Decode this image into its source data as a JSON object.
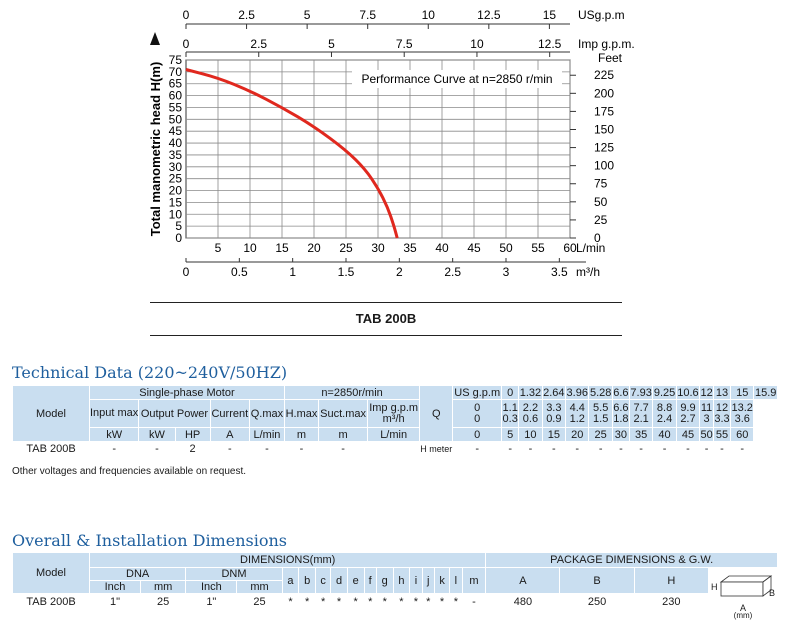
{
  "chart_data": {
    "type": "line",
    "title": "Performance Curve at n=2850 r/min",
    "ylabel": "Total manometric head H(m)",
    "y_ticks": [
      0,
      5,
      10,
      15,
      20,
      25,
      30,
      35,
      40,
      45,
      50,
      55,
      60,
      65,
      70,
      75
    ],
    "y_right_unit": "Feet",
    "y_right_ticks": [
      0,
      25,
      50,
      75,
      100,
      125,
      150,
      175,
      200,
      225
    ],
    "x_lmin_unit": "L/min",
    "x_lmin_ticks": [
      5,
      10,
      15,
      20,
      25,
      30,
      35,
      40,
      45,
      50,
      55,
      60
    ],
    "x_m3h_unit": "m³/h",
    "x_m3h_ticks": [
      "0",
      "0.5",
      "1",
      "1.5",
      "2",
      "2.5",
      "3",
      "3.5"
    ],
    "x_usgpm_unit": "USg.p.m",
    "x_usgpm_ticks": [
      "0",
      "2.5",
      "5",
      "7.5",
      "10",
      "12.5",
      "15"
    ],
    "x_impgpm_unit": "Imp g.p.m.",
    "x_impgpm_ticks": [
      "0",
      "2.5",
      "5",
      "7.5",
      "10",
      "12.5"
    ],
    "xlim": [
      0,
      60
    ],
    "ylim": [
      0,
      75
    ],
    "grid": true,
    "series": [
      {
        "color": "#e0281e",
        "x": [
          0,
          5,
          10,
          15,
          20,
          25,
          28,
          30,
          31.5,
          32.5,
          33
        ],
        "y": [
          71,
          67.5,
          62,
          55,
          47,
          37,
          29,
          21,
          13,
          5,
          0
        ]
      }
    ]
  },
  "model_caption": "TAB 200B",
  "technical": {
    "title": "Technical Data (220~240V/50HZ)",
    "model_header": "Model",
    "motor_header": "Single-phase Motor",
    "n_header": "n=2850r/min",
    "input_max": "Input max",
    "output_power": "Output Power",
    "current": "Current",
    "qmax": "Q.max",
    "hmax": "H.max",
    "suctmax": "Suct.max",
    "q": "Q",
    "unit_kw": "kW",
    "unit_kw2": "kW",
    "unit_hp": "HP",
    "unit_a": "A",
    "unit_lmin": "L/min",
    "unit_m": "m",
    "unit_m2": "m",
    "q_rows": [
      {
        "label": "US g.p.m",
        "values": [
          "0",
          "1.32",
          "2.64",
          "3.96",
          "5.28",
          "6.6",
          "7.93",
          "9.25",
          "10.6",
          "12",
          "13",
          "15",
          "15.9"
        ]
      },
      {
        "label": "Imp g.p.m",
        "values": [
          "0",
          "1.1",
          "2.2",
          "3.3",
          "4.4",
          "5.5",
          "6.6",
          "7.7",
          "8.8",
          "9.9",
          "11",
          "12",
          "13.2"
        ]
      },
      {
        "label": "m³/h",
        "values": [
          "0",
          "0.3",
          "0.6",
          "0.9",
          "1.2",
          "1.5",
          "1.8",
          "2.1",
          "2.4",
          "2.7",
          "3",
          "3.3",
          "3.6"
        ]
      },
      {
        "label": "L/min",
        "values": [
          "0",
          "5",
          "10",
          "15",
          "20",
          "25",
          "30",
          "35",
          "40",
          "45",
          "50",
          "55",
          "60"
        ]
      }
    ],
    "row": {
      "model": "TAB 200B",
      "input": "-",
      "kw": "-",
      "hp": "2",
      "current": "-",
      "qmax": "-",
      "hmax": "-",
      "suct": "-",
      "hmeter_label": "H meter",
      "hmeter_values": [
        "-",
        "-",
        "-",
        "-",
        "-",
        "-",
        "-",
        "-",
        "-",
        "-",
        "-",
        "-",
        "-"
      ]
    },
    "note": "Other voltages and frequencies available on request."
  },
  "dimensions": {
    "title": "Overall & Installation Dimensions",
    "model_header": "Model",
    "dims_header": "DIMENSIONS(mm)",
    "pkg_header": "PACKAGE DIMENSIONS & G.W.",
    "dna": "DNA",
    "dnm": "DNM",
    "inch": "Inch",
    "mm": "mm",
    "inch2": "Inch",
    "mm2": "mm",
    "letters": [
      "a",
      "b",
      "c",
      "d",
      "e",
      "f",
      "g",
      "h",
      "i",
      "j",
      "k",
      "l",
      "m"
    ],
    "pkg_letters": [
      "A",
      "B",
      "H"
    ],
    "box_h": "H",
    "box_b": "B",
    "box_a": "A",
    "box_mm": "(mm)",
    "row": {
      "model": "TAB 200B",
      "dna_inch": "1\"",
      "dna_mm": "25",
      "dnm_inch": "1\"",
      "dnm_mm": "25",
      "letter_values": [
        "*",
        "*",
        "*",
        "*",
        "*",
        "*",
        "*",
        "*",
        "*",
        "*",
        "*",
        "*",
        "-"
      ],
      "pkg_values": [
        "480",
        "250",
        "230"
      ]
    }
  }
}
